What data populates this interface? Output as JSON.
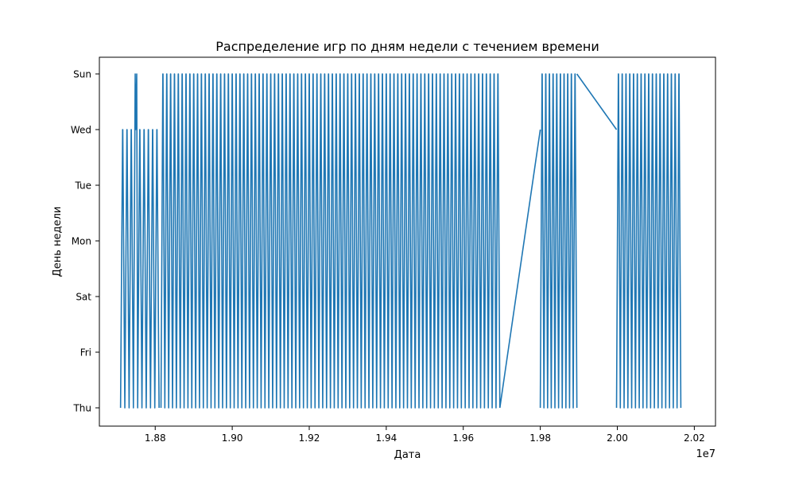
{
  "chart_data": {
    "type": "line",
    "title": "Распределение игр по дням недели с течением времени",
    "xlabel": "Дата",
    "ylabel": "День недели",
    "x_offset_label": "1e7",
    "xlim": [
      18655000.0,
      20255000.0
    ],
    "x_ticks": [
      {
        "value": 18800000.0,
        "label": "1.88"
      },
      {
        "value": 19000000.0,
        "label": "1.90"
      },
      {
        "value": 19200000.0,
        "label": "1.92"
      },
      {
        "value": 19400000.0,
        "label": "1.94"
      },
      {
        "value": 19600000.0,
        "label": "1.96"
      },
      {
        "value": 19800000.0,
        "label": "1.98"
      },
      {
        "value": 20000000.0,
        "label": "2.00"
      },
      {
        "value": 20200000.0,
        "label": "2.02"
      }
    ],
    "y_categories": [
      "Thu",
      "Fri",
      "Sat",
      "Mon",
      "Tue",
      "Wed",
      "Sun"
    ],
    "grid": false,
    "line_color": "#1f77b4",
    "series": [
      {
        "segments": [
          {
            "pattern": "Thu-Wed",
            "x_start": 18710000.0,
            "x_end": 18810000.0,
            "cycles": 9,
            "extra_points": [
              [
                18748000.0,
                "Sun"
              ],
              [
                18752000.0,
                "Sun"
              ]
            ]
          },
          {
            "pattern": "Thu-Sun",
            "x_start": 18815000.0,
            "x_end": 19695000.0,
            "cycles": 88
          },
          {
            "pattern": "Thu-Sun",
            "x_start": 19800000.0,
            "x_end": 19895000.0,
            "cycles": 10
          },
          {
            "pattern": "Thu-Sun",
            "x_start": 19998000.0,
            "x_end": 20165000.0,
            "cycles": 17
          }
        ],
        "connectors": [
          {
            "from": [
              19695000.0,
              "Thu"
            ],
            "to": [
              19800000.0,
              "Wed"
            ]
          },
          {
            "from": [
              19895000.0,
              "Sun"
            ],
            "to": [
              19998000.0,
              "Wed"
            ]
          }
        ]
      }
    ]
  }
}
